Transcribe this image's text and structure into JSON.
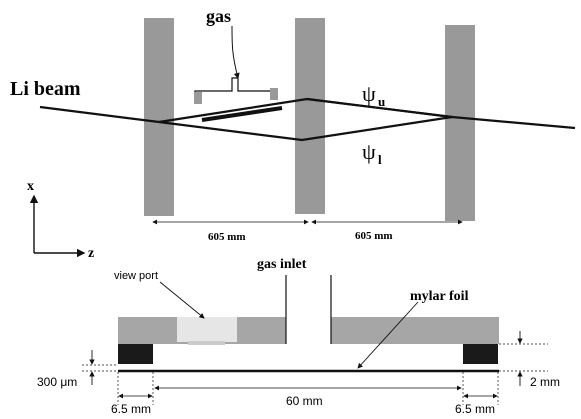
{
  "top": {
    "gas_label": "gas",
    "beam_label": "Li beam",
    "psi_symbol": "ψ",
    "psi_upper_sub": "u",
    "psi_lower_sub": "l",
    "dim_left": "605 mm",
    "dim_right": "605 mm"
  },
  "axes": {
    "x_label": "x",
    "z_label": "z"
  },
  "bottom": {
    "gas_inlet": "gas inlet",
    "view_port": "view port",
    "mylar_foil": "mylar foil",
    "dim_300um": "300 μm",
    "dim_2mm": "2 mm",
    "dim_60mm": "60 mm",
    "dim_left_6_5": "6.5 mm",
    "dim_right_6_5": "6.5 mm"
  },
  "colors": {
    "grating": "#999999",
    "housing": "#a6a6a6",
    "viewport": "#e6e6e6",
    "block": "#1a1a1a",
    "line": "#111111"
  }
}
